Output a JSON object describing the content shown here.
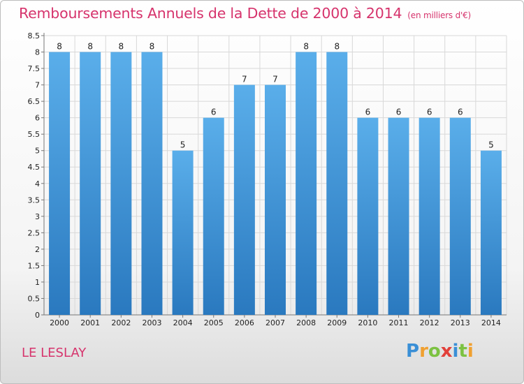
{
  "header": {
    "title": "Remboursements Annuels de la Dette de 2000 à 2014",
    "unit": "(en milliers d'€)"
  },
  "footer": {
    "commune": "LE LESLAY",
    "logo": [
      "P",
      "r",
      "o",
      "x",
      "i",
      "t",
      "i"
    ]
  },
  "chart_data": {
    "type": "bar",
    "title": "Remboursements Annuels de la Dette de 2000 à 2014",
    "unit": "(en milliers d'€)",
    "categories": [
      "2000",
      "2001",
      "2002",
      "2003",
      "2004",
      "2005",
      "2006",
      "2007",
      "2008",
      "2009",
      "2010",
      "2011",
      "2012",
      "2013",
      "2014"
    ],
    "values": [
      8,
      8,
      8,
      8,
      5,
      6,
      7,
      7,
      8,
      8,
      6,
      6,
      6,
      6,
      5
    ],
    "value_labels": [
      "8",
      "8",
      "8",
      "8",
      "5",
      "6",
      "7",
      "7",
      "8",
      "8",
      "6",
      "6",
      "6",
      "6",
      "5"
    ],
    "y_ticks": [
      "0",
      "0.5",
      "1",
      "1.5",
      "2",
      "2.5",
      "3",
      "3.5",
      "4",
      "4.5",
      "5",
      "5.5",
      "6",
      "6.5",
      "7",
      "7.5",
      "8",
      "8.5"
    ],
    "ylim": [
      0,
      8.5
    ],
    "grid": true,
    "bar_color": "#3d97dc",
    "grid_color": "#d8d8d8"
  }
}
